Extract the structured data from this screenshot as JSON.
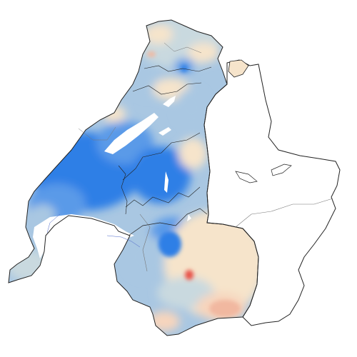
{
  "map": {
    "colors": {
      "strong_blue": "#2f7fe6",
      "mid_blue": "#5a9ae8",
      "light_blue": "#a9c7e2",
      "pale_gray_blue": "#c9d9df",
      "beige": "#f6e4cb",
      "light_orange": "#f7d5bd",
      "salmon": "#f1b8a0",
      "red": "#e8534a",
      "boundary_dark": "#222222",
      "boundary_gray": "#777777",
      "lake_outline": "#4b66c9"
    }
  }
}
